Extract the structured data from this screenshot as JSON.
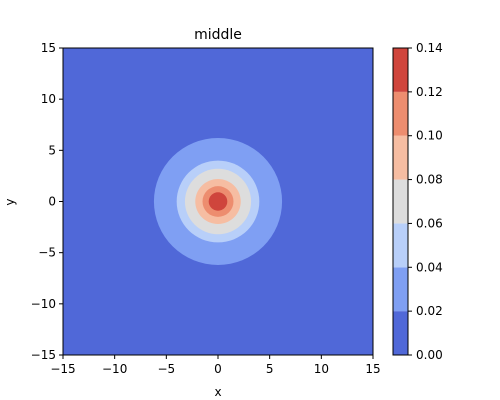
{
  "chart_data": {
    "type": "heatmap",
    "subtype": "filled-contour",
    "title": "middle",
    "xlabel": "x",
    "ylabel": "y",
    "xlim": [
      -15,
      15
    ],
    "ylim": [
      -15,
      15
    ],
    "xticks": [
      -15,
      -10,
      -5,
      0,
      5,
      10,
      15
    ],
    "yticks": [
      -15,
      -10,
      -5,
      0,
      5,
      10,
      15
    ],
    "xtick_labels": [
      "−15",
      "−10",
      "−5",
      "0",
      "5",
      "10",
      "15"
    ],
    "ytick_labels": [
      "−15",
      "−10",
      "−5",
      "0",
      "5",
      "10",
      "15"
    ],
    "center": [
      0,
      0
    ],
    "contour_levels": [
      0.0,
      0.02,
      0.04,
      0.06,
      0.08,
      0.1,
      0.12,
      0.14
    ],
    "level_colors": [
      "#5068d8",
      "#7f9ff3",
      "#b8cff9",
      "#dddddd",
      "#f6bda2",
      "#ed8d6f",
      "#cf453c"
    ],
    "band_outer_radii": [
      null,
      6.2,
      4.0,
      3.2,
      2.2,
      1.5,
      0.9
    ],
    "colorbar": {
      "ticks": [
        0.0,
        0.02,
        0.04,
        0.06,
        0.08,
        0.1,
        0.12,
        0.14
      ],
      "tick_labels": [
        "0.00",
        "0.02",
        "0.04",
        "0.06",
        "0.08",
        "0.10",
        "0.12",
        "0.14"
      ]
    },
    "grid": false,
    "legend": "none"
  }
}
